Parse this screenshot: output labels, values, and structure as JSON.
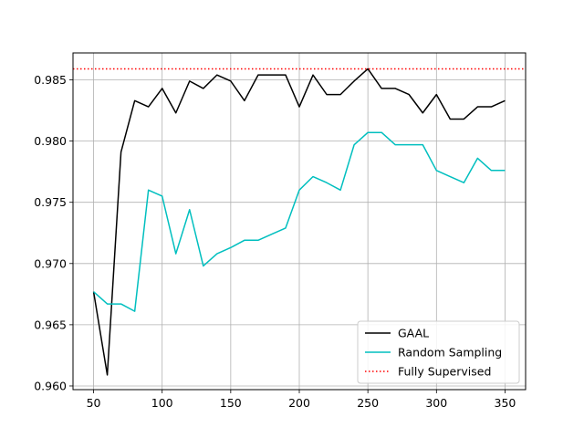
{
  "chart_data": {
    "type": "line",
    "title": "",
    "xlabel": "",
    "ylabel": "",
    "xlim": [
      35,
      365
    ],
    "ylim": [
      0.9597,
      0.9872
    ],
    "grid": true,
    "legend_position": "lower-right",
    "x_ticks": [
      50,
      100,
      150,
      200,
      250,
      300,
      350
    ],
    "y_ticks": [
      0.96,
      0.965,
      0.97,
      0.975,
      0.98,
      0.985
    ],
    "x_tick_labels": [
      "50",
      "100",
      "150",
      "200",
      "250",
      "300",
      "350"
    ],
    "y_tick_labels": [
      "0.960",
      "0.965",
      "0.970",
      "0.975",
      "0.980",
      "0.985"
    ],
    "x": [
      50,
      60,
      70,
      80,
      90,
      100,
      110,
      120,
      130,
      140,
      150,
      160,
      170,
      180,
      190,
      200,
      210,
      220,
      230,
      240,
      250,
      260,
      270,
      280,
      290,
      300,
      310,
      320,
      330,
      340,
      350
    ],
    "series": [
      {
        "name": "GAAL",
        "color": "#000000",
        "style": "solid",
        "values": [
          0.9677,
          0.9609,
          0.9791,
          0.9833,
          0.9828,
          0.9843,
          0.9823,
          0.9849,
          0.9843,
          0.9854,
          0.9849,
          0.9833,
          0.9854,
          0.9854,
          0.9854,
          0.9828,
          0.9854,
          0.9838,
          0.9838,
          0.9849,
          0.9859,
          0.9843,
          0.9843,
          0.9838,
          0.9823,
          0.9838,
          0.9818,
          0.9818,
          0.9828,
          0.9828,
          0.9833
        ]
      },
      {
        "name": "Random Sampling",
        "color": "#00bfbf",
        "style": "solid",
        "values": [
          0.9677,
          0.9667,
          0.9667,
          0.9661,
          0.976,
          0.9755,
          0.9708,
          0.9744,
          0.9698,
          0.9708,
          0.9713,
          0.9719,
          0.9719,
          0.9724,
          0.9729,
          0.976,
          0.9771,
          0.9766,
          0.976,
          0.9797,
          0.9807,
          0.9807,
          0.9797,
          0.9797,
          0.9797,
          0.9776,
          0.9771,
          0.9766,
          0.9786,
          0.9776,
          0.9776
        ]
      },
      {
        "name": "Fully Supervised",
        "color": "#ff0000",
        "style": "dotted",
        "constant": 0.9859
      }
    ]
  }
}
